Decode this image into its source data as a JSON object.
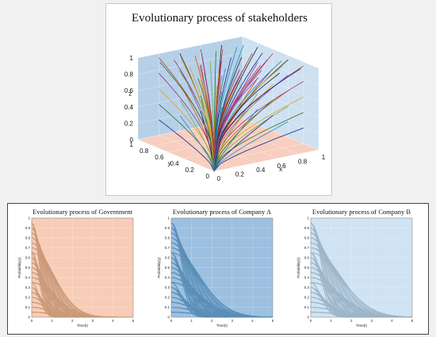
{
  "chart_data": [
    {
      "type": "line",
      "title": "Evolutionary process of stakeholders",
      "xlabel": "x",
      "ylabel": "y",
      "zlabel": "z",
      "xlim": [
        0,
        1
      ],
      "ylim": [
        0,
        1
      ],
      "zlim": [
        0,
        1
      ],
      "x_ticks": [
        "0",
        "0.2",
        "0.4",
        "0.6",
        "0.8",
        "1"
      ],
      "y_ticks": [
        "0",
        "0.2",
        "0.4",
        "0.6",
        "0.8",
        "1"
      ],
      "z_ticks": [
        "0",
        "0.2",
        "0.4",
        "0.6",
        "0.8",
        "1"
      ],
      "grid": true,
      "colors": {
        "plane_xz": "#a9c8e4",
        "plane_yz": "#c5dcee",
        "plane_xy": "#f6c9b8",
        "lines": [
          "#1f1f8f",
          "#2a6f2a",
          "#e3a21a",
          "#9b2d8c",
          "#c0392b",
          "#1b8fb3",
          "#6ab04c",
          "#d35400",
          "#8e44ad",
          "#222222"
        ]
      },
      "series": {
        "description_free": true,
        "count": 80,
        "origin": [
          0,
          0,
          0
        ],
        "endpoints": "uniform grid over the three back faces of the unit cube"
      }
    },
    {
      "type": "line",
      "title": "Evolutionary process of Government",
      "xlabel": "Time(t)",
      "ylabel": "Probability(x)",
      "xlim": [
        0,
        5
      ],
      "ylim": [
        0,
        1
      ],
      "x_ticks": [
        "0",
        "1",
        "2",
        "3",
        "4",
        "5"
      ],
      "y_ticks": [
        "0",
        "0.1",
        "0.2",
        "0.3",
        "0.4",
        "0.5",
        "0.6",
        "0.7",
        "0.8",
        "0.9",
        "1"
      ],
      "grid": true,
      "background": "#f7cdb8",
      "line_color": "#b98561",
      "start_values": [
        0.95,
        0.9,
        0.85,
        0.8,
        0.75,
        0.7,
        0.65,
        0.6,
        0.55,
        0.5,
        0.45,
        0.4,
        0.35,
        0.3,
        0.25,
        0.2,
        0.15,
        0.1,
        0.05
      ],
      "decay_time_range": [
        0.5,
        1.6
      ]
    },
    {
      "type": "line",
      "title": "Evolutionary process of Company A",
      "xlabel": "Time(t)",
      "ylabel": "Probability(y)",
      "xlim": [
        0,
        5
      ],
      "ylim": [
        0,
        1
      ],
      "x_ticks": [
        "0",
        "1",
        "2",
        "3",
        "4",
        "5"
      ],
      "y_ticks": [
        "0",
        "0.1",
        "0.2",
        "0.3",
        "0.4",
        "0.5",
        "0.6",
        "0.7",
        "0.8",
        "0.9",
        "1"
      ],
      "grid": true,
      "background": "#9dc0e0",
      "line_color": "#3f7aa8",
      "start_values": [
        0.95,
        0.9,
        0.85,
        0.8,
        0.75,
        0.7,
        0.65,
        0.6,
        0.55,
        0.5,
        0.45,
        0.4,
        0.35,
        0.3,
        0.25,
        0.2,
        0.15,
        0.1,
        0.05
      ],
      "decay_time_range": [
        0.7,
        2.0
      ]
    },
    {
      "type": "line",
      "title": "Evolutionary process of Company B",
      "xlabel": "Time(t)",
      "ylabel": "Probability(z)",
      "xlim": [
        0,
        5
      ],
      "ylim": [
        0,
        1
      ],
      "x_ticks": [
        "0",
        "1",
        "2",
        "3",
        "4",
        "5"
      ],
      "y_ticks": [
        "0",
        "0.1",
        "0.2",
        "0.3",
        "0.4",
        "0.5",
        "0.6",
        "0.7",
        "0.8",
        "0.9",
        "1"
      ],
      "grid": true,
      "background": "#cfe3f2",
      "line_color": "#8aa4b8",
      "start_values": [
        0.95,
        0.9,
        0.85,
        0.8,
        0.75,
        0.7,
        0.65,
        0.6,
        0.55,
        0.5,
        0.45,
        0.4,
        0.35,
        0.3,
        0.25,
        0.2,
        0.15,
        0.1,
        0.05
      ],
      "decay_time_range": [
        0.7,
        2.1
      ]
    }
  ]
}
